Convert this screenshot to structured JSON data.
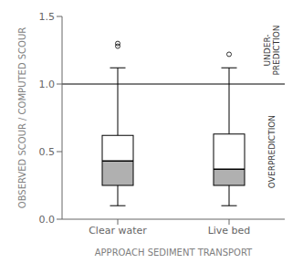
{
  "chart_data": {
    "type": "box",
    "categories": [
      "Clear water",
      "Live bed"
    ],
    "boxes": [
      {
        "q1": 0.25,
        "median": 0.43,
        "q3": 0.62,
        "whislo": 0.1,
        "whishi": 1.12,
        "fliers": [
          1.28,
          1.3
        ]
      },
      {
        "q1": 0.25,
        "median": 0.37,
        "q3": 0.63,
        "whislo": 0.1,
        "whishi": 1.12,
        "fliers": [
          1.22
        ]
      }
    ],
    "ylim": [
      0.0,
      1.5
    ],
    "yticks": [
      {
        "value": 0.0,
        "label": "0.0"
      },
      {
        "value": 0.5,
        "label": "0.5"
      },
      {
        "value": 1.0,
        "label": "1.0"
      },
      {
        "value": 1.5,
        "label": "1.5"
      }
    ],
    "hline_y": 1.0,
    "ylabel": "OBSERVED SCOUR / COMPUTED SCOUR",
    "xlabel": "APPROACH SEDIMENT TRANSPORT",
    "annotations": [
      "UNDER-\nPREDICTION",
      "OVERPREDICTION"
    ],
    "color": "#b0b0b0",
    "grid": false
  }
}
